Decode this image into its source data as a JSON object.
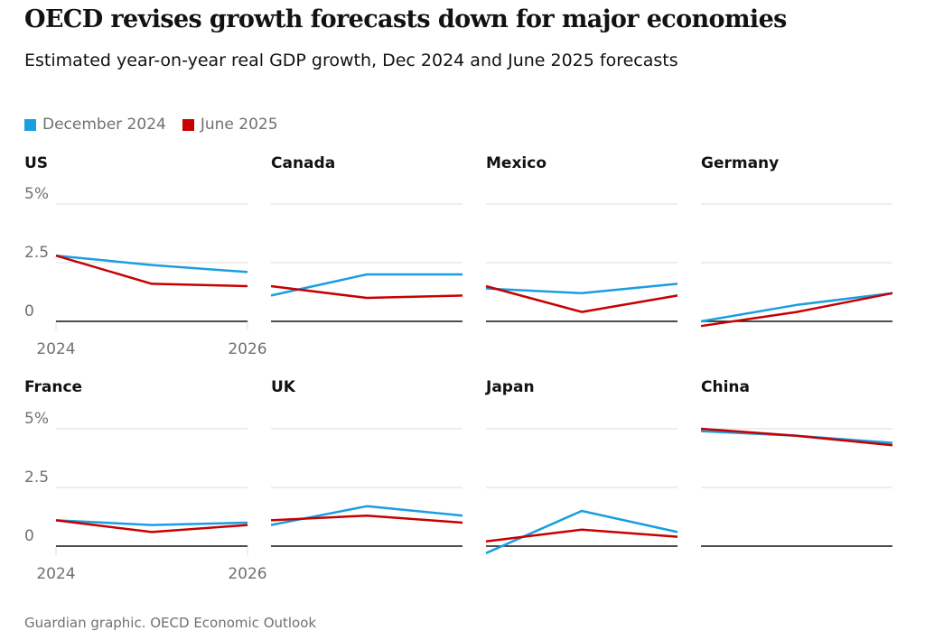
{
  "title": "OECD revises growth forecasts down for major economies",
  "subtitle": "Estimated year-on-year real GDP growth, Dec 2024 and June 2025 forecasts",
  "source": "Guardian graphic. OECD Economic Outlook",
  "colors": {
    "dec2024": "#1a9ee0",
    "jun2025": "#c70000",
    "grid": "#dcdcdc",
    "axis": "#121212"
  },
  "chart_data": {
    "type": "line",
    "x": [
      2024,
      2025,
      2026
    ],
    "x_tick_labels": [
      "2024",
      "2026"
    ],
    "y_tick_labels": [
      "5%",
      "2.5",
      "0"
    ],
    "ylim": [
      0,
      5
    ],
    "legend": [
      {
        "name": "December 2024",
        "key": "dec"
      },
      {
        "name": "June 2025",
        "key": "jun"
      }
    ],
    "panels": [
      {
        "title": "US",
        "dec": [
          2.8,
          2.4,
          2.1
        ],
        "jun": [
          2.8,
          1.6,
          1.5
        ]
      },
      {
        "title": "Canada",
        "dec": [
          1.1,
          2.0,
          2.0
        ],
        "jun": [
          1.5,
          1.0,
          1.1
        ]
      },
      {
        "title": "Mexico",
        "dec": [
          1.4,
          1.2,
          1.6
        ],
        "jun": [
          1.5,
          0.4,
          1.1
        ]
      },
      {
        "title": "Germany",
        "dec": [
          0.0,
          0.7,
          1.2
        ],
        "jun": [
          -0.2,
          0.4,
          1.2
        ]
      },
      {
        "title": "France",
        "dec": [
          1.1,
          0.9,
          1.0
        ],
        "jun": [
          1.1,
          0.6,
          0.9
        ]
      },
      {
        "title": "UK",
        "dec": [
          0.9,
          1.7,
          1.3
        ],
        "jun": [
          1.1,
          1.3,
          1.0
        ]
      },
      {
        "title": "Japan",
        "dec": [
          -0.3,
          1.5,
          0.6
        ],
        "jun": [
          0.2,
          0.7,
          0.4
        ]
      },
      {
        "title": "China",
        "dec": [
          4.9,
          4.7,
          4.4
        ],
        "jun": [
          5.0,
          4.7,
          4.3
        ]
      }
    ]
  }
}
